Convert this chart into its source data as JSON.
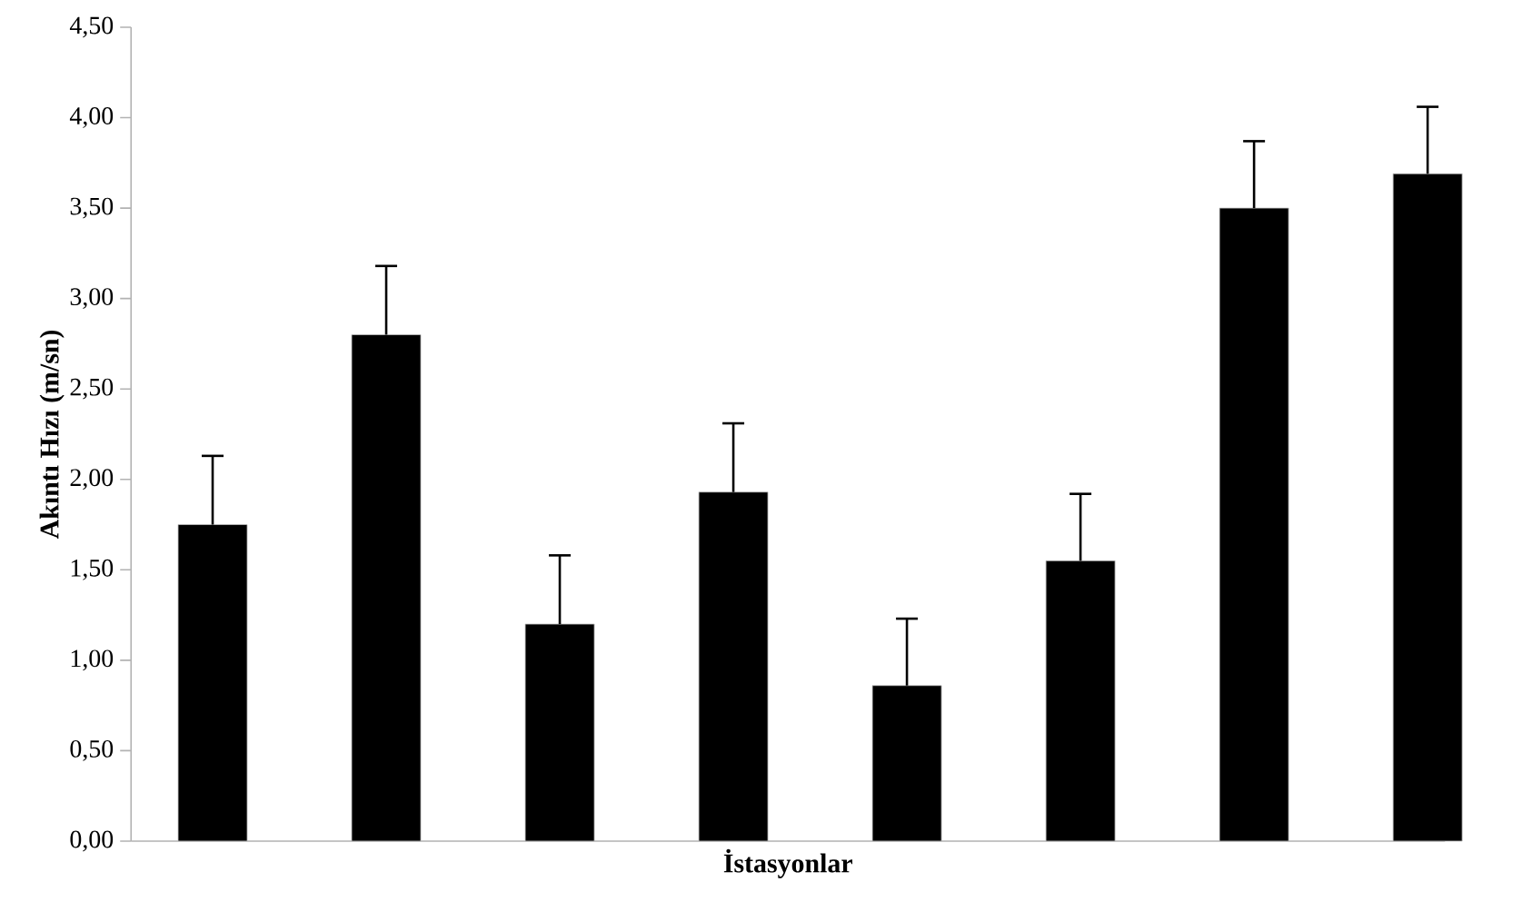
{
  "chart_data": {
    "type": "bar",
    "xlabel": "İstasyonlar",
    "ylabel": "Akıntı Hızı (m/sn)",
    "categories": [
      null,
      null,
      null,
      null,
      null,
      null,
      null,
      null
    ],
    "values": [
      1.75,
      2.8,
      1.2,
      1.93,
      0.86,
      1.55,
      3.5,
      3.69
    ],
    "errors": [
      [
        1.75,
        2.13
      ],
      [
        2.8,
        3.18
      ],
      [
        1.2,
        1.58
      ],
      [
        1.93,
        2.31
      ],
      [
        0.86,
        1.23
      ],
      [
        1.55,
        1.92
      ],
      [
        3.5,
        3.87
      ],
      [
        3.69,
        4.06
      ]
    ],
    "color": "#000000",
    "ylim": [
      0,
      4.5
    ],
    "yticks": [
      {
        "value": 0,
        "label": "0,00"
      },
      {
        "value": 0.5,
        "label": "0,50"
      },
      {
        "value": 1,
        "label": "1,00"
      },
      {
        "value": 1.5,
        "label": "1,50"
      },
      {
        "value": 2,
        "label": "2,00"
      },
      {
        "value": 2.5,
        "label": "2,50"
      },
      {
        "value": 3,
        "label": "3,00"
      },
      {
        "value": 3.5,
        "label": "3,50"
      },
      {
        "value": 4,
        "label": "4,00"
      },
      {
        "value": 4.5,
        "label": "4,50"
      }
    ],
    "grid": false
  }
}
